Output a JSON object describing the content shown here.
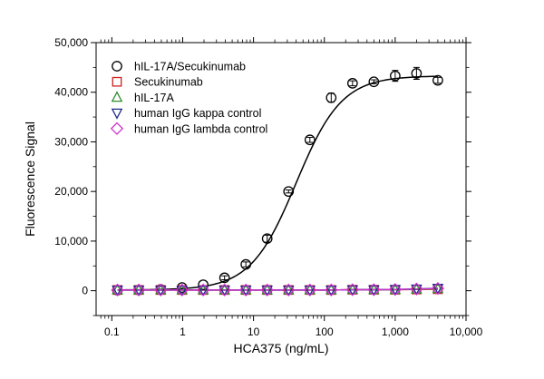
{
  "chart_data": {
    "type": "scatter",
    "xlabel": "HCA375 (ng/mL)",
    "ylabel": "Fluorescence Signal",
    "x_scale": "log",
    "xlim": [
      0.06,
      10000
    ],
    "ylim": [
      -5000,
      50000
    ],
    "x_ticks": [
      {
        "value": 0.1,
        "label": "0.1"
      },
      {
        "value": 1,
        "label": "1"
      },
      {
        "value": 10,
        "label": "10"
      },
      {
        "value": 100,
        "label": "100"
      },
      {
        "value": 1000,
        "label": "1,000"
      },
      {
        "value": 10000,
        "label": "10,000"
      }
    ],
    "y_ticks": [
      {
        "value": 0,
        "label": "0"
      },
      {
        "value": 10000,
        "label": "10,000"
      },
      {
        "value": 20000,
        "label": "20,000"
      },
      {
        "value": 30000,
        "label": "30,000"
      },
      {
        "value": 40000,
        "label": "40,000"
      },
      {
        "value": 50000,
        "label": "50,000"
      }
    ],
    "grid": false,
    "legend_position": "top-left",
    "x": [
      0.12,
      0.24,
      0.49,
      0.98,
      1.95,
      3.9,
      7.8,
      15.6,
      31.25,
      62.5,
      125,
      250,
      500,
      1000,
      2000,
      4000
    ],
    "series": [
      {
        "name": "hIL-17A/Secukinumab",
        "marker": "circle",
        "color": "#000000",
        "values": [
          100,
          150,
          250,
          650,
          1200,
          2600,
          5300,
          10500,
          20000,
          30400,
          38900,
          41800,
          42100,
          43300,
          43800,
          42400
        ],
        "error": [
          0,
          0,
          0,
          0,
          0,
          400,
          500,
          700,
          300,
          500,
          900,
          500,
          400,
          1100,
          1200,
          600
        ],
        "fit": {
          "bottom": 150,
          "top": 43300,
          "ec50": 40,
          "hill": 1.35,
          "color": "#000000"
        }
      },
      {
        "name": "Secukinumab",
        "marker": "square",
        "color": "#cc2222",
        "values": [
          150,
          150,
          150,
          150,
          150,
          150,
          150,
          150,
          150,
          150,
          150,
          200,
          200,
          200,
          250,
          300
        ]
      },
      {
        "name": "hIL-17A",
        "marker": "triangle-up",
        "color": "#2e8b2e",
        "values": [
          150,
          150,
          150,
          150,
          150,
          150,
          150,
          150,
          150,
          150,
          150,
          200,
          200,
          200,
          300,
          400
        ]
      },
      {
        "name": "human IgG kappa control",
        "marker": "triangle-down",
        "color": "#1f2a8a",
        "values": [
          150,
          150,
          150,
          150,
          150,
          150,
          150,
          150,
          150,
          150,
          150,
          200,
          200,
          250,
          350,
          500
        ]
      },
      {
        "name": "human IgG lambda control",
        "marker": "diamond",
        "color": "#cc33cc",
        "values": [
          150,
          150,
          150,
          150,
          150,
          150,
          150,
          150,
          150,
          150,
          150,
          200,
          200,
          250,
          350,
          450
        ]
      }
    ]
  }
}
